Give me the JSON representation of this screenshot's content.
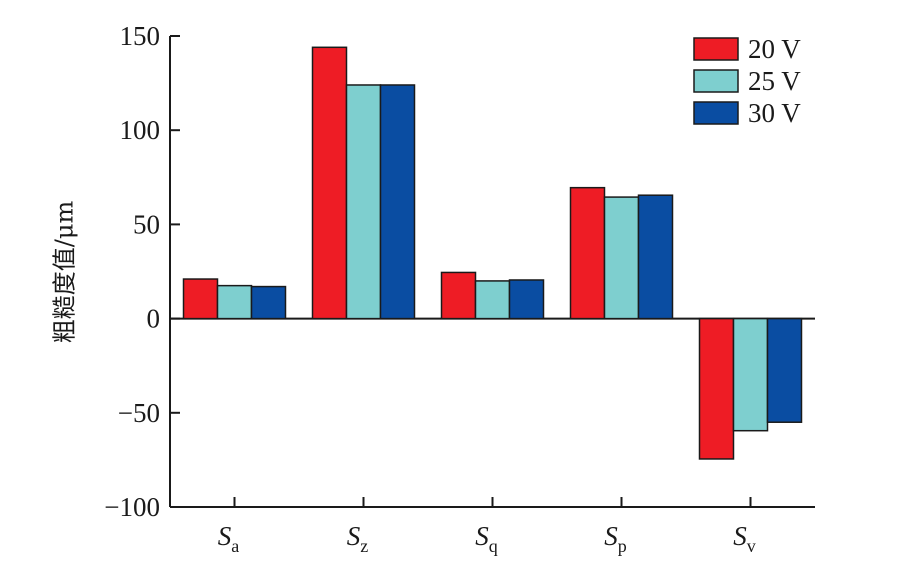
{
  "chart_data": {
    "type": "bar",
    "ylabel": "粗糙度值/μm",
    "xlabel": "",
    "ylim": [
      -100,
      150
    ],
    "yticks": [
      -100,
      -50,
      0,
      50,
      100,
      150
    ],
    "ytick_labels": [
      "−100",
      "−50",
      "0",
      "50",
      "100",
      "150"
    ],
    "categories": [
      {
        "main": "S",
        "sub": "a"
      },
      {
        "main": "S",
        "sub": "z"
      },
      {
        "main": "S",
        "sub": "q"
      },
      {
        "main": "S",
        "sub": "p"
      },
      {
        "main": "S",
        "sub": "v"
      }
    ],
    "series": [
      {
        "name": "20 V",
        "color": "#ee1c25",
        "values": [
          21,
          144,
          24.5,
          69.5,
          -74.5
        ]
      },
      {
        "name": "25 V",
        "color": "#7ecfcf",
        "values": [
          17.5,
          124,
          20,
          64.5,
          -59.5
        ]
      },
      {
        "name": "30 V",
        "color": "#0a4da2",
        "values": [
          17,
          124,
          20.5,
          65.5,
          -55
        ]
      }
    ],
    "legend_position": "top-right",
    "grid": false
  }
}
